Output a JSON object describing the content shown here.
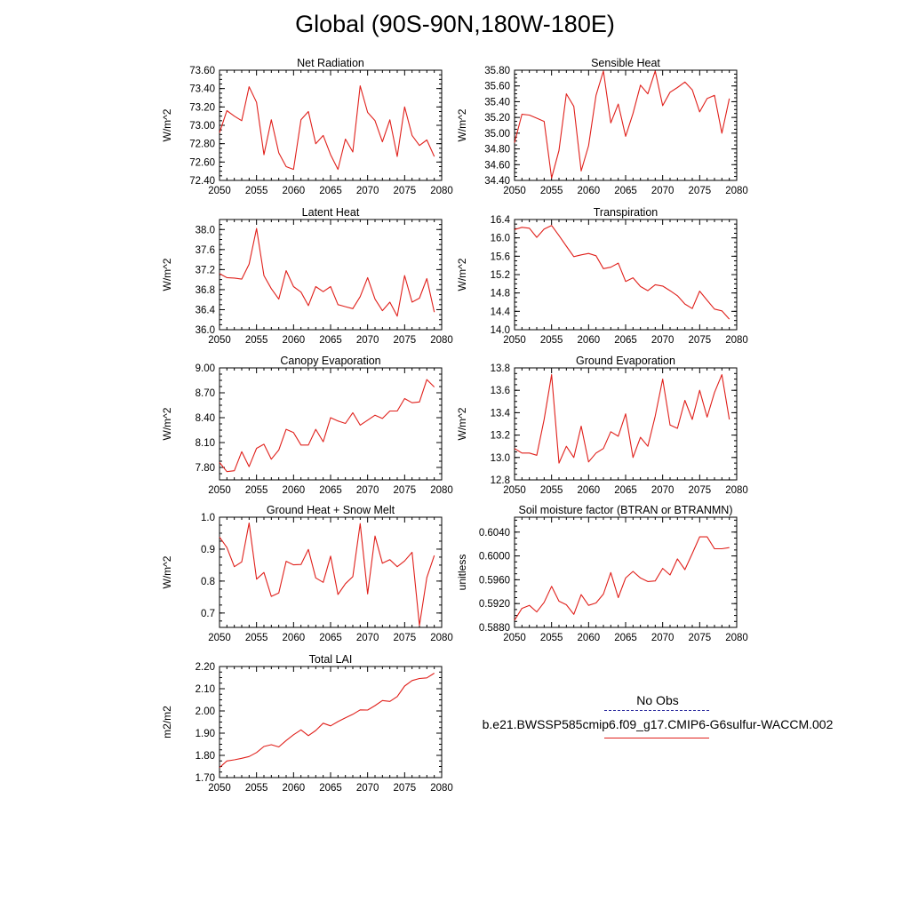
{
  "figure_title": "Global (90S-90N,180W-180E)",
  "line_color": "#e0201b",
  "legend": {
    "obs_label": "No Obs",
    "obs_color": "#2b2b9e",
    "run_label": "b.e21.BWSSP585cmip6.f09_g17.CMIP6-G6sulfur-WACCM.002",
    "run_color": "#e0201b"
  },
  "chart_data": [
    {
      "type": "line",
      "title": "Net Radiation",
      "ylabel": "W/m^2",
      "xlim": [
        2050,
        2080
      ],
      "ylim": [
        72.4,
        73.6
      ],
      "xticks": [
        "2050",
        "2055",
        "2060",
        "2065",
        "2070",
        "2075",
        "2080"
      ],
      "yticks": [
        "72.40",
        "72.60",
        "72.80",
        "73.00",
        "73.20",
        "73.40",
        "73.60"
      ],
      "x": [
        2050,
        2051,
        2052,
        2053,
        2054,
        2055,
        2056,
        2057,
        2058,
        2059,
        2060,
        2061,
        2062,
        2063,
        2064,
        2065,
        2066,
        2067,
        2068,
        2069,
        2070,
        2071,
        2072,
        2073,
        2074,
        2075,
        2076,
        2077,
        2078,
        2079
      ],
      "y": [
        72.92,
        73.16,
        73.1,
        73.05,
        73.42,
        73.25,
        72.68,
        73.06,
        72.7,
        72.55,
        72.52,
        73.06,
        73.15,
        72.8,
        72.89,
        72.68,
        72.52,
        72.85,
        72.71,
        73.43,
        73.14,
        73.05,
        72.82,
        73.06,
        72.66,
        73.2,
        72.89,
        72.78,
        72.84,
        72.66
      ]
    },
    {
      "type": "line",
      "title": "Sensible Heat",
      "ylabel": "W/m^2",
      "xlim": [
        2050,
        2080
      ],
      "ylim": [
        34.4,
        35.8
      ],
      "xticks": [
        "2050",
        "2055",
        "2060",
        "2065",
        "2070",
        "2075",
        "2080"
      ],
      "yticks": [
        "34.40",
        "34.60",
        "34.80",
        "35.00",
        "35.20",
        "35.40",
        "35.60",
        "35.80"
      ],
      "x": [
        2050,
        2051,
        2052,
        2053,
        2054,
        2055,
        2056,
        2057,
        2058,
        2059,
        2060,
        2061,
        2062,
        2063,
        2064,
        2065,
        2066,
        2067,
        2068,
        2069,
        2070,
        2071,
        2072,
        2073,
        2074,
        2075,
        2076,
        2077,
        2078,
        2079
      ],
      "y": [
        34.88,
        35.24,
        35.23,
        35.19,
        35.15,
        34.43,
        34.78,
        35.5,
        35.34,
        34.52,
        34.84,
        35.48,
        35.79,
        35.13,
        35.37,
        34.96,
        35.25,
        35.61,
        35.5,
        35.79,
        35.35,
        35.52,
        35.58,
        35.65,
        35.55,
        35.27,
        35.44,
        35.48,
        35.0,
        35.44
      ]
    },
    {
      "type": "line",
      "title": "Latent Heat",
      "ylabel": "W/m^2",
      "xlim": [
        2050,
        2080
      ],
      "ylim": [
        36.0,
        38.2
      ],
      "xticks": [
        "2050",
        "2055",
        "2060",
        "2065",
        "2070",
        "2075",
        "2080"
      ],
      "yticks": [
        "36.0",
        "36.4",
        "36.8",
        "37.2",
        "37.6",
        "38.0"
      ],
      "x": [
        2050,
        2051,
        2052,
        2053,
        2054,
        2055,
        2056,
        2057,
        2058,
        2059,
        2060,
        2061,
        2062,
        2063,
        2064,
        2065,
        2066,
        2067,
        2068,
        2069,
        2070,
        2071,
        2072,
        2073,
        2074,
        2075,
        2076,
        2077,
        2078,
        2079
      ],
      "y": [
        37.12,
        37.04,
        37.03,
        37.01,
        37.31,
        38.02,
        37.08,
        36.82,
        36.61,
        37.18,
        36.86,
        36.75,
        36.48,
        36.86,
        36.76,
        36.86,
        36.5,
        36.46,
        36.42,
        36.66,
        37.04,
        36.61,
        36.38,
        36.55,
        36.27,
        37.08,
        36.55,
        36.63,
        37.02,
        36.35
      ]
    },
    {
      "type": "line",
      "title": "Transpiration",
      "ylabel": "W/m^2",
      "xlim": [
        2050,
        2080
      ],
      "ylim": [
        14.0,
        16.4
      ],
      "xticks": [
        "2050",
        "2055",
        "2060",
        "2065",
        "2070",
        "2075",
        "2080"
      ],
      "yticks": [
        "14.0",
        "14.4",
        "14.8",
        "15.2",
        "15.6",
        "16.0",
        "16.4"
      ],
      "x": [
        2050,
        2051,
        2052,
        2053,
        2054,
        2055,
        2056,
        2057,
        2058,
        2059,
        2060,
        2061,
        2062,
        2063,
        2064,
        2065,
        2066,
        2067,
        2068,
        2069,
        2070,
        2071,
        2072,
        2073,
        2074,
        2075,
        2076,
        2077,
        2078,
        2079
      ],
      "y": [
        16.18,
        16.23,
        16.21,
        16.01,
        16.19,
        16.27,
        16.05,
        15.82,
        15.59,
        15.63,
        15.66,
        15.61,
        15.33,
        15.36,
        15.45,
        15.05,
        15.13,
        14.94,
        14.85,
        14.98,
        14.95,
        14.85,
        14.74,
        14.56,
        14.46,
        14.84,
        14.64,
        14.45,
        14.41,
        14.23
      ]
    },
    {
      "type": "line",
      "title": "Canopy Evaporation",
      "ylabel": "W/m^2",
      "xlim": [
        2050,
        2080
      ],
      "ylim": [
        7.65,
        9.0
      ],
      "xticks": [
        "2050",
        "2055",
        "2060",
        "2065",
        "2070",
        "2075",
        "2080"
      ],
      "yticks": [
        "7.80",
        "8.10",
        "8.40",
        "8.70",
        "9.00"
      ],
      "x": [
        2050,
        2051,
        2052,
        2053,
        2054,
        2055,
        2056,
        2057,
        2058,
        2059,
        2060,
        2061,
        2062,
        2063,
        2064,
        2065,
        2066,
        2067,
        2068,
        2069,
        2070,
        2071,
        2072,
        2073,
        2074,
        2075,
        2076,
        2077,
        2078,
        2079
      ],
      "y": [
        7.86,
        7.75,
        7.76,
        7.99,
        7.81,
        8.03,
        8.08,
        7.9,
        8.01,
        8.26,
        8.22,
        8.07,
        8.07,
        8.26,
        8.11,
        8.4,
        8.36,
        8.33,
        8.46,
        8.31,
        8.37,
        8.43,
        8.39,
        8.48,
        8.48,
        8.63,
        8.58,
        8.59,
        8.86,
        8.77
      ]
    },
    {
      "type": "line",
      "title": "Ground Evaporation",
      "ylabel": "W/m^2",
      "xlim": [
        2050,
        2080
      ],
      "ylim": [
        12.8,
        13.8
      ],
      "xticks": [
        "2050",
        "2055",
        "2060",
        "2065",
        "2070",
        "2075",
        "2080"
      ],
      "yticks": [
        "12.8",
        "13.0",
        "13.2",
        "13.4",
        "13.6",
        "13.8"
      ],
      "x": [
        2050,
        2051,
        2052,
        2053,
        2054,
        2055,
        2056,
        2057,
        2058,
        2059,
        2060,
        2061,
        2062,
        2063,
        2064,
        2065,
        2066,
        2067,
        2068,
        2069,
        2070,
        2071,
        2072,
        2073,
        2074,
        2075,
        2076,
        2077,
        2078,
        2079
      ],
      "y": [
        13.08,
        13.04,
        13.04,
        13.02,
        13.34,
        13.74,
        12.95,
        13.1,
        13.0,
        13.28,
        12.96,
        13.04,
        13.08,
        13.23,
        13.19,
        13.39,
        13.0,
        13.18,
        13.1,
        13.37,
        13.7,
        13.29,
        13.26,
        13.51,
        13.34,
        13.6,
        13.36,
        13.58,
        13.74,
        13.34
      ]
    },
    {
      "type": "line",
      "title": "Ground Heat + Snow Melt",
      "ylabel": "W/m^2",
      "xlim": [
        2050,
        2080
      ],
      "ylim": [
        0.655,
        1.0
      ],
      "xticks": [
        "2050",
        "2055",
        "2060",
        "2065",
        "2070",
        "2075",
        "2080"
      ],
      "yticks": [
        "0.7",
        "0.8",
        "0.9",
        "1.0"
      ],
      "x": [
        2050,
        2051,
        2052,
        2053,
        2054,
        2055,
        2056,
        2057,
        2058,
        2059,
        2060,
        2061,
        2062,
        2063,
        2064,
        2065,
        2066,
        2067,
        2068,
        2069,
        2070,
        2071,
        2072,
        2073,
        2074,
        2075,
        2076,
        2077,
        2078,
        2079
      ],
      "y": [
        0.938,
        0.905,
        0.845,
        0.86,
        0.982,
        0.806,
        0.827,
        0.752,
        0.763,
        0.862,
        0.851,
        0.852,
        0.899,
        0.81,
        0.796,
        0.878,
        0.758,
        0.792,
        0.814,
        0.98,
        0.76,
        0.941,
        0.856,
        0.867,
        0.845,
        0.863,
        0.89,
        0.661,
        0.811,
        0.88
      ]
    },
    {
      "type": "line",
      "title": "Soil moisture factor (BTRAN or BTRANMN)",
      "ylabel": "unitless",
      "xlim": [
        2050,
        2080
      ],
      "ylim": [
        0.588,
        0.6065
      ],
      "xticks": [
        "2050",
        "2055",
        "2060",
        "2065",
        "2070",
        "2075",
        "2080"
      ],
      "yticks": [
        "0.5880",
        "0.5920",
        "0.5960",
        "0.6000",
        "0.6040"
      ],
      "x": [
        2050,
        2051,
        2052,
        2053,
        2054,
        2055,
        2056,
        2057,
        2058,
        2059,
        2060,
        2061,
        2062,
        2063,
        2064,
        2065,
        2066,
        2067,
        2068,
        2069,
        2070,
        2071,
        2072,
        2073,
        2074,
        2075,
        2076,
        2077,
        2078,
        2079
      ],
      "y": [
        0.5892,
        0.5912,
        0.5917,
        0.5906,
        0.5922,
        0.5949,
        0.5924,
        0.5918,
        0.5902,
        0.5935,
        0.5917,
        0.5921,
        0.5936,
        0.5972,
        0.593,
        0.5963,
        0.5974,
        0.5963,
        0.5957,
        0.5958,
        0.5979,
        0.5968,
        0.5995,
        0.5977,
        0.6004,
        0.6032,
        0.6032,
        0.6012,
        0.6012,
        0.6014
      ]
    },
    {
      "type": "line",
      "title": "Total LAI",
      "ylabel": "m2/m2",
      "xlim": [
        2050,
        2080
      ],
      "ylim": [
        1.7,
        2.2
      ],
      "xticks": [
        "2050",
        "2055",
        "2060",
        "2065",
        "2070",
        "2075",
        "2080"
      ],
      "yticks": [
        "1.70",
        "1.80",
        "1.90",
        "2.00",
        "2.10",
        "2.20"
      ],
      "x": [
        2050,
        2051,
        2052,
        2053,
        2054,
        2055,
        2056,
        2057,
        2058,
        2059,
        2060,
        2061,
        2062,
        2063,
        2064,
        2065,
        2066,
        2067,
        2068,
        2069,
        2070,
        2071,
        2072,
        2073,
        2074,
        2075,
        2076,
        2077,
        2078,
        2079
      ],
      "y": [
        1.745,
        1.775,
        1.78,
        1.787,
        1.795,
        1.813,
        1.84,
        1.848,
        1.838,
        1.867,
        1.893,
        1.915,
        1.889,
        1.912,
        1.945,
        1.933,
        1.952,
        1.969,
        1.985,
        2.005,
        2.004,
        2.024,
        2.047,
        2.043,
        2.065,
        2.112,
        2.137,
        2.146,
        2.149,
        2.17
      ]
    }
  ]
}
